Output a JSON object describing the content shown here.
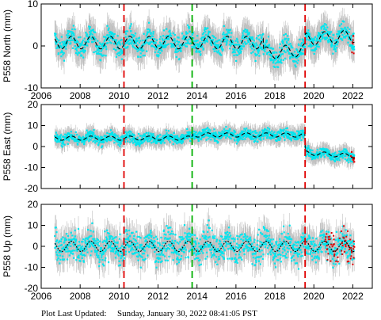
{
  "footer": {
    "label": "Plot Last Updated:",
    "timestamp": "Sunday, January 30, 2022 08:41:05 PST"
  },
  "colors": {
    "data": "#00e5ee",
    "error_bars": "#bfbfbf",
    "recent_points": "#e00000",
    "model": "#000000",
    "event_red": "#e00000",
    "event_green": "#00b000"
  },
  "chart_data": [
    {
      "type": "scatter",
      "station": "P558",
      "component": "North",
      "ylabel": "P558 North (mm)",
      "xlim": [
        2006,
        2023
      ],
      "ylim": [
        -10,
        10
      ],
      "xticks": [
        2006,
        2008,
        2010,
        2012,
        2014,
        2016,
        2018,
        2020,
        2022
      ],
      "yticks": [
        -10,
        0,
        10
      ],
      "show_xtick_labels": true,
      "start": 2006.7,
      "end": 2022.08,
      "event_lines": [
        {
          "x": 2010.25,
          "style": "red-dashed"
        },
        {
          "x": 2013.75,
          "style": "green-dashed"
        },
        {
          "x": 2019.55,
          "style": "red-dashed"
        }
      ],
      "model": {
        "amplitude": 1.5,
        "segments": [
          {
            "from": 2006.7,
            "to": 2017.4,
            "level": 0.8,
            "slope": 0.0
          },
          {
            "from": 2017.4,
            "to": 2019.55,
            "level": -1.8,
            "slope": 0.4
          },
          {
            "from": 2019.55,
            "to": 2022.08,
            "level": 1.6,
            "slope": 0.3
          }
        ]
      },
      "scatter_spread": 1.8,
      "error_bar_size": 3.2,
      "recent_start": 2021.95
    },
    {
      "type": "scatter",
      "station": "P558",
      "component": "East",
      "ylabel": "P558 East (mm)",
      "xlim": [
        2006,
        2023
      ],
      "ylim": [
        -20,
        20
      ],
      "xticks": [
        2006,
        2008,
        2010,
        2012,
        2014,
        2016,
        2018,
        2020,
        2022
      ],
      "yticks": [
        -20,
        -10,
        0,
        10,
        20
      ],
      "show_xtick_labels": false,
      "start": 2006.7,
      "end": 2022.08,
      "event_lines": [
        {
          "x": 2010.25,
          "style": "red-dashed"
        },
        {
          "x": 2013.75,
          "style": "green-dashed"
        },
        {
          "x": 2019.55,
          "style": "red-dashed"
        }
      ],
      "model": {
        "amplitude": 1.0,
        "segments": [
          {
            "from": 2006.7,
            "to": 2013.75,
            "level": 4.0,
            "slope": 0.0
          },
          {
            "from": 2013.75,
            "to": 2019.55,
            "level": 5.5,
            "slope": 0.0
          },
          {
            "from": 2019.55,
            "to": 2022.08,
            "level": -3.0,
            "slope": -0.6
          }
        ]
      },
      "scatter_spread": 1.8,
      "error_bar_size": 3.5,
      "recent_start": 2021.9
    },
    {
      "type": "scatter",
      "station": "P558",
      "component": "Up",
      "ylabel": "P558 Up (mm)",
      "xlim": [
        2006,
        2023
      ],
      "ylim": [
        -20,
        20
      ],
      "xticks": [
        2006,
        2008,
        2010,
        2012,
        2014,
        2016,
        2018,
        2020,
        2022
      ],
      "yticks": [
        -20,
        -10,
        0,
        10,
        20
      ],
      "show_xtick_labels": true,
      "start": 2006.7,
      "end": 2022.08,
      "event_lines": [
        {
          "x": 2010.25,
          "style": "red-dashed"
        },
        {
          "x": 2013.75,
          "style": "green-dashed"
        },
        {
          "x": 2019.55,
          "style": "red-dashed"
        }
      ],
      "model": {
        "amplitude": 2.5,
        "segments": [
          {
            "from": 2006.7,
            "to": 2022.08,
            "level": 0.0,
            "slope": 0.0
          }
        ]
      },
      "scatter_spread": 5.0,
      "error_bar_size": 6.0,
      "recent_start": 2020.6
    }
  ]
}
